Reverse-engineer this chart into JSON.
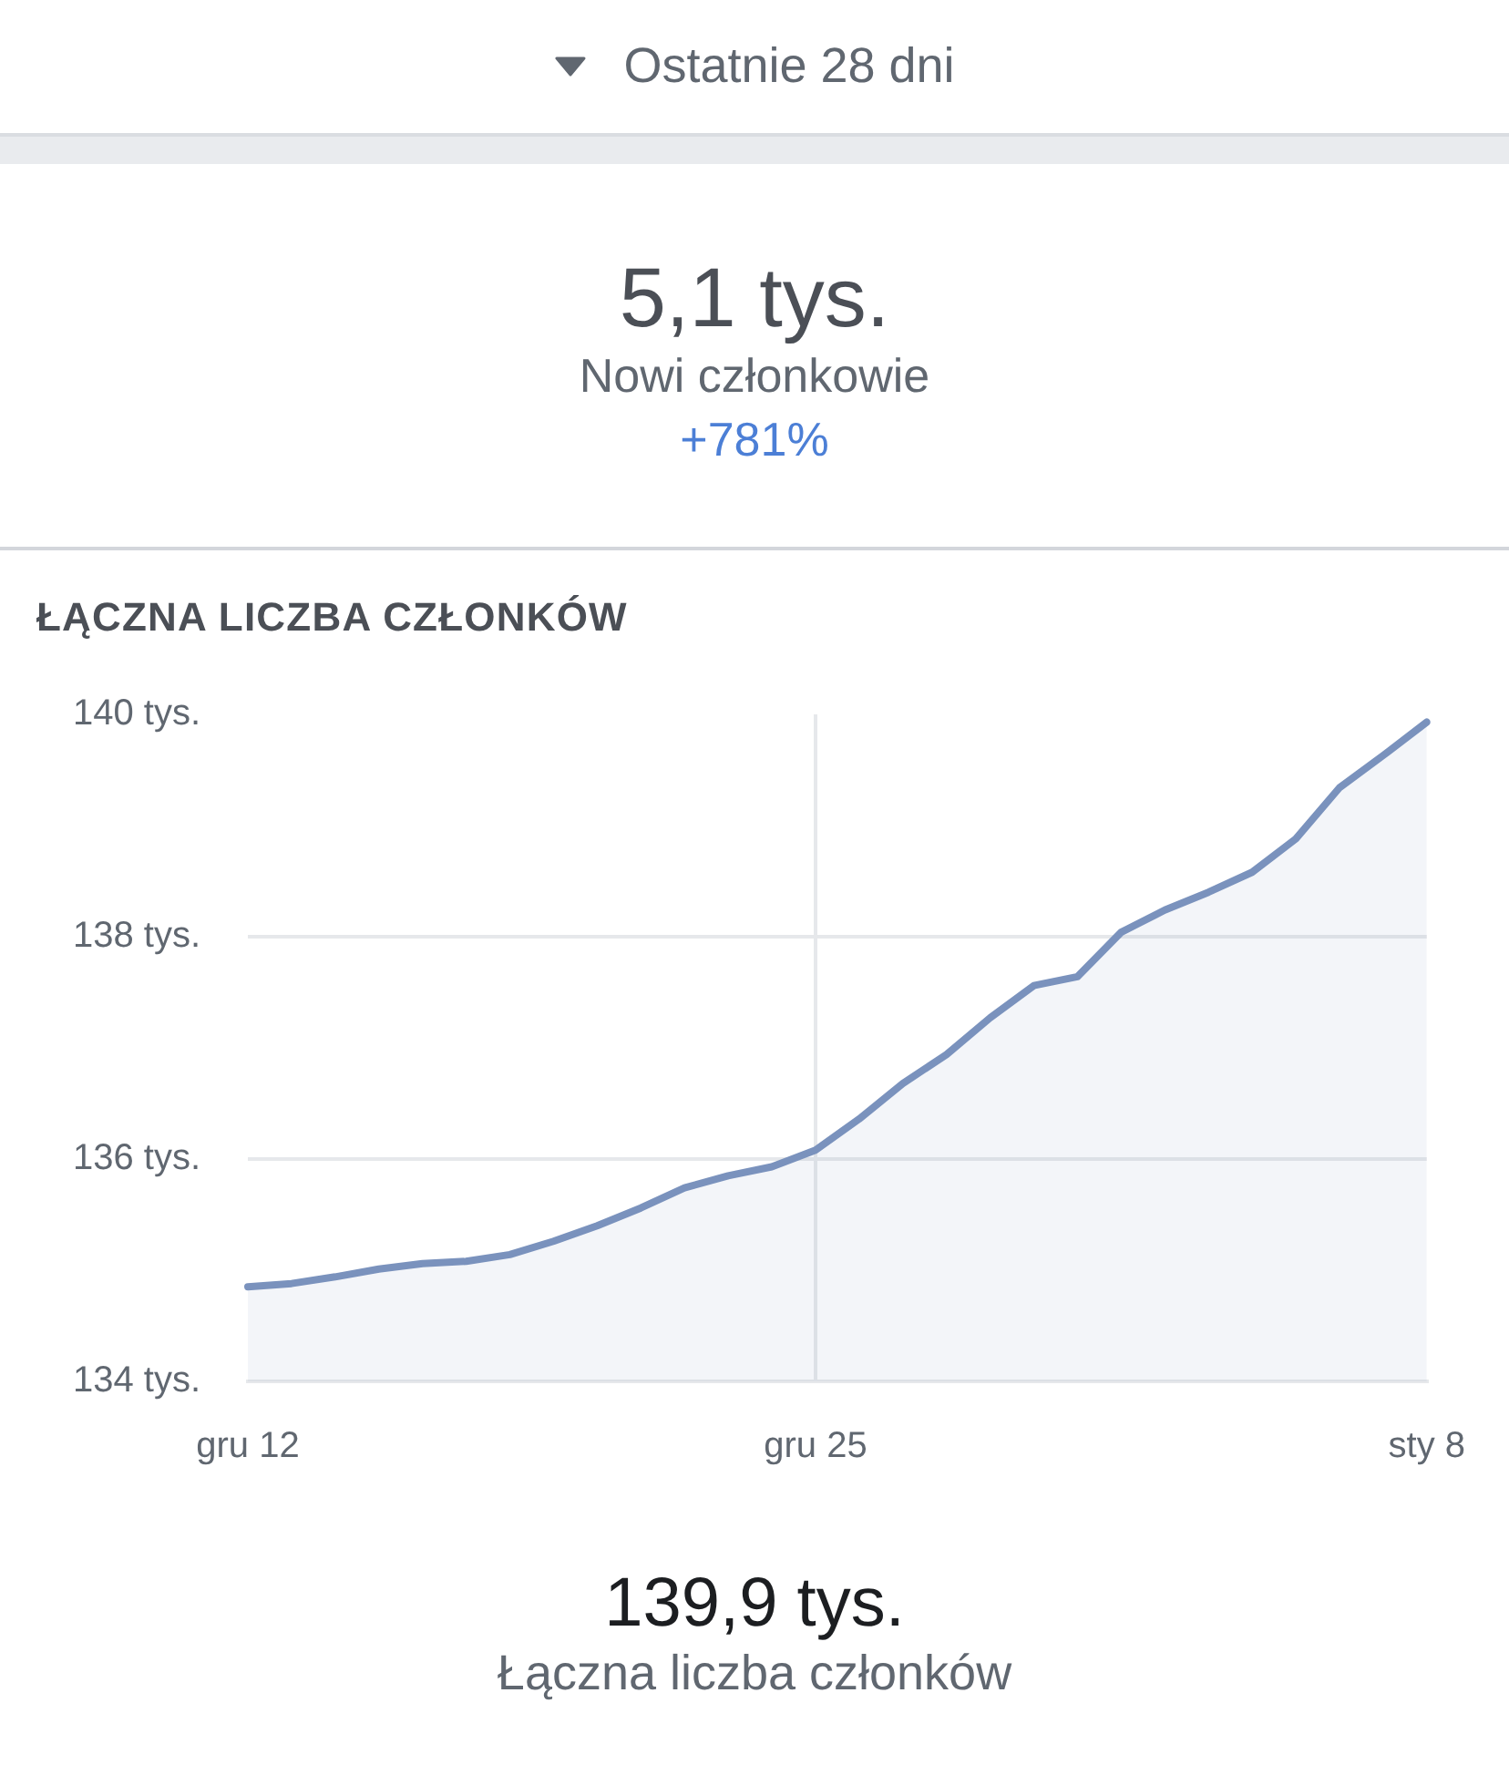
{
  "chart_data": {
    "type": "area",
    "title": "ŁĄCZNA LICZBA CZŁONKÓW",
    "annotations": [
      "Ostatnie 28 dni",
      "5,1 tys.",
      "Nowi członkowie",
      "+781%",
      "139,9 tys.",
      "Łączna liczba członków"
    ],
    "categories": [
      "gru 12",
      null,
      null,
      null,
      null,
      null,
      null,
      null,
      null,
      null,
      null,
      null,
      null,
      "gru 25",
      null,
      null,
      null,
      null,
      null,
      null,
      null,
      null,
      null,
      null,
      null,
      null,
      null,
      "sty 8"
    ],
    "values": [
      134.85,
      134.88,
      134.94,
      135.01,
      135.06,
      135.08,
      135.14,
      135.26,
      135.4,
      135.56,
      135.74,
      135.85,
      135.93,
      136.08,
      136.36,
      136.68,
      136.94,
      137.27,
      137.56,
      137.64,
      138.04,
      138.24,
      138.4,
      138.58,
      138.88,
      139.34,
      139.63,
      139.93
    ],
    "color": "#7a92bd",
    "ylim": [
      134,
      140
    ],
    "yticks": [
      {
        "value": 134,
        "label": "134 tys."
      },
      {
        "value": 136,
        "label": "136 tys."
      },
      {
        "value": 138,
        "label": "138 tys."
      },
      {
        "value": 140,
        "label": "140 tys."
      }
    ],
    "grid": true,
    "marker": "none"
  }
}
